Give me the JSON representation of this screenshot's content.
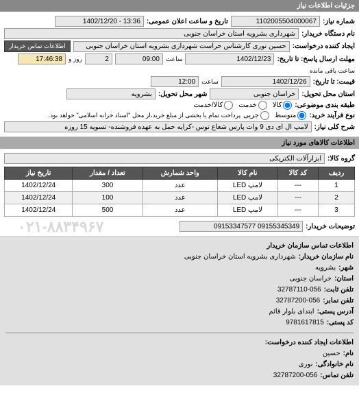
{
  "header": "جزئیات اطلاعات نیاز",
  "form": {
    "number_label": "شماره نیاز:",
    "number": "1102005504000067",
    "announce_label": "تاریخ و ساعت اعلان عمومی:",
    "announce": "13:36 - 1402/12/20",
    "org_label": "نام دستگاه خریدار:",
    "org": "شهرداری بشرویه استان خراسان جنوبی",
    "creator_label": "ایجاد کننده درخواست:",
    "creator": "حسین نوری کارشناس حراست شهرداری بشرویه استان خراسان جنوبی",
    "contact_btn": "اطلاعات تماس خریدار",
    "deadline_reply_label": "مهلت ارسال پاسخ: تا تاریخ:",
    "deadline_reply_date": "1402/12/23",
    "time_label": "ساعت",
    "deadline_reply_time": "09:00",
    "days_label": "روز و",
    "days": "2",
    "remaining_time": "17:46:38",
    "remaining_label": "ساعت باقی مانده",
    "price_until_label": "قیمت: تا تاریخ:",
    "price_until_date": "1402/12/26",
    "price_until_time": "12:00",
    "delivery_province_label": "استان محل تحویل:",
    "delivery_province": "خراسان جنوبی",
    "delivery_city_label": "شهر محل تحویل:",
    "delivery_city": "بشرویه",
    "packaging_label": "طبقه بندی موضوعی:",
    "pack_opts": {
      "kala": "کالا",
      "avg": "خدمت",
      "service": "کالا/خدمت"
    },
    "purchase_type_label": "نوع فرآیند خرید:",
    "purchase_opts": {
      "low": "متوسط",
      "mid": "جزیی"
    },
    "purchase_note": "پرداخت تمام یا بخشی از مبلغ خرید،از محل \"اسناد خزانه اسلامی\" خواهد بود.",
    "desc_label": "شرح کلی نیاز:",
    "desc": "لامپ ال ای دی 9 وات پارس شعاع توس -کرایه حمل به عهده فروشنده- تسویه 15 روزه"
  },
  "goods_header": "اطلاعات کالاهای مورد نیاز",
  "group_label": "گروه کالا:",
  "group": "ابزارآلات الکتریکی",
  "table": {
    "columns": [
      "ردیف",
      "کد کالا",
      "نام کالا",
      "واحد شمارش",
      "تعداد / مقدار",
      "تاریخ نیاز"
    ],
    "rows": [
      [
        "1",
        "---",
        "لامپ LED",
        "عدد",
        "300",
        "1402/12/24"
      ],
      [
        "2",
        "---",
        "لامپ LED",
        "عدد",
        "100",
        "1402/12/24"
      ],
      [
        "3",
        "---",
        "لامپ LED",
        "عدد",
        "500",
        "1402/12/24"
      ]
    ]
  },
  "buyer_note_label": "توضیحات خریدار:",
  "buyer_note": "09155345349 09153347577",
  "watermark": "۰۲۱-۸۸۳۴۹۶۷",
  "contact_header": "اطلاعات تماس سازمان خریدار",
  "contact": {
    "org_k": "نام سازمان خریدار:",
    "org_v": "شهرداری بشرویه استان خراسان جنوبی",
    "city_k": "شهر:",
    "city_v": "بشرویه",
    "province_k": "استان:",
    "province_v": "خراسان جنوبی",
    "phone_k": "تلفن ثابت:",
    "phone_v": "32787110-056",
    "fax_k": "تلفن نمابر:",
    "fax_v": "32787200-056",
    "addr_k": "آدرس پستی:",
    "addr_v": "ابتدای بلوار قائم",
    "post_k": "کد پستی:",
    "post_v": "9781617815"
  },
  "creator_header": "اطلاعات ایجاد کننده درخواست:",
  "creator_info": {
    "name_k": "نام:",
    "name_v": "حسین",
    "family_k": "نام خانوادگی:",
    "family_v": "نوری",
    "phone_k": "تلفن تماس:",
    "phone_v": "32787200-056"
  },
  "colors": {
    "header_bg": "#888888",
    "btn_bg": "#555555",
    "field_bg": "#e8e8e8",
    "info_bg": "#e0e0e0"
  }
}
